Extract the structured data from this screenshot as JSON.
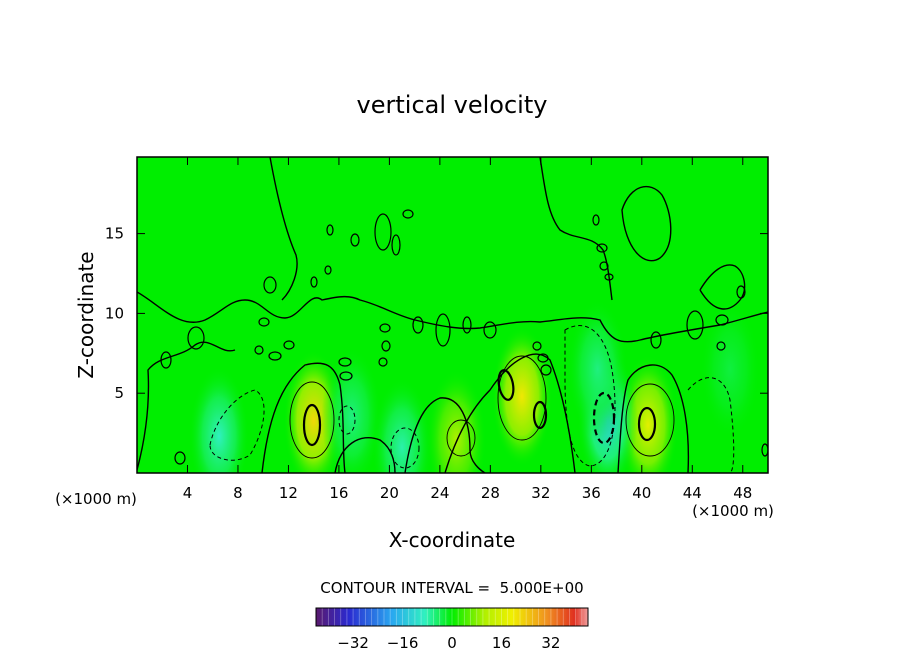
{
  "chart_data": {
    "type": "heatmap",
    "title": "vertical velocity",
    "xlabel": "X-coordinate",
    "ylabel": "Z-coordinate",
    "x_unit": "(×1000 m)",
    "x_ticks": [
      4,
      8,
      12,
      16,
      20,
      24,
      28,
      32,
      36,
      40,
      44,
      48
    ],
    "y_ticks": [
      5,
      10,
      15
    ],
    "xlim": [
      0,
      50
    ],
    "ylim": [
      0,
      19.8
    ],
    "contour_interval_label": "CONTOUR INTERVAL =  5.000E+00",
    "colorbar": {
      "ticks": [
        -32,
        -16,
        0,
        16,
        32
      ],
      "range": [
        -44,
        44
      ]
    },
    "features": [
      {
        "x": 14,
        "z": 3.3,
        "value": 22
      },
      {
        "x": 30.5,
        "z": 4.8,
        "value": 20
      },
      {
        "x": 40.5,
        "z": 3.0,
        "value": 17
      },
      {
        "x": 25.3,
        "z": 2.1,
        "value": 10
      },
      {
        "x": 6.5,
        "z": 2.3,
        "value": -9
      },
      {
        "x": 17,
        "z": 3.5,
        "value": -6
      },
      {
        "x": 21,
        "z": 1.6,
        "value": -8
      },
      {
        "x": 37.3,
        "z": 3.3,
        "value": -14
      },
      {
        "x": 36.5,
        "z": 6.5,
        "value": -6
      },
      {
        "x": 47,
        "z": 6.5,
        "value": -3
      }
    ]
  }
}
